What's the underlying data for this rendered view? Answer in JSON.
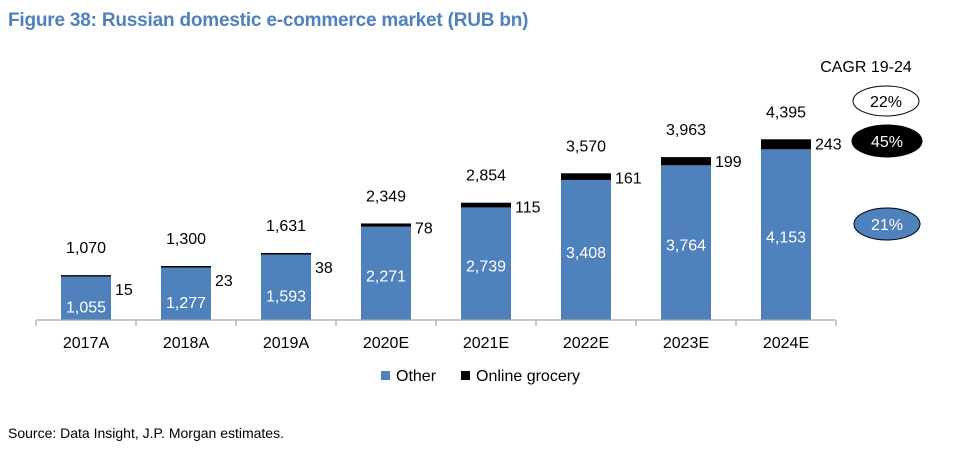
{
  "title": "Figure 38: Russian domestic e-commerce market (RUB bn)",
  "source": "Source: Data Insight, J.P. Morgan estimates.",
  "cagr": {
    "heading": "CAGR 19-24",
    "total": "22%",
    "online_grocery": "45%",
    "other": "21%"
  },
  "colors": {
    "other": "#4f81bd",
    "online_grocery": "#000000",
    "title": "#4f81bd"
  },
  "chart_data": {
    "type": "bar",
    "stacked": true,
    "categories": [
      "2017A",
      "2018A",
      "2019A",
      "2020E",
      "2021E",
      "2022E",
      "2023E",
      "2024E"
    ],
    "series": [
      {
        "name": "Other",
        "values": [
          1055,
          1277,
          1593,
          2271,
          2739,
          3408,
          3764,
          4153
        ]
      },
      {
        "name": "Online grocery",
        "values": [
          15,
          23,
          38,
          78,
          115,
          161,
          199,
          243
        ]
      }
    ],
    "totals": [
      1070,
      1300,
      1631,
      2349,
      2854,
      3570,
      3963,
      4395
    ],
    "labels": {
      "other": [
        "1,055",
        "1,277",
        "1,593",
        "2,271",
        "2,739",
        "3,408",
        "3,764",
        "4,153"
      ],
      "online_grocery": [
        "15",
        "23",
        "38",
        "78",
        "115",
        "161",
        "199",
        "243"
      ],
      "totals": [
        "1,070",
        "1,300",
        "1,631",
        "2,349",
        "2,854",
        "3,570",
        "3,963",
        "4,395"
      ]
    },
    "ylim": [
      0,
      5150
    ],
    "grid": false,
    "legend_position": "bottom"
  }
}
